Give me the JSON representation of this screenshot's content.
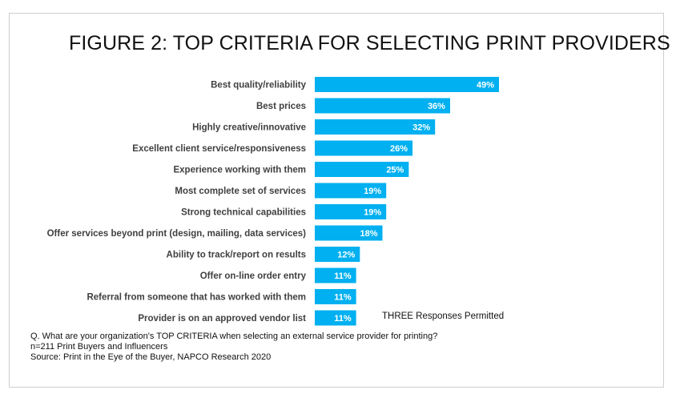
{
  "title": "FIGURE 2: TOP CRITERIA FOR SELECTING PRINT PROVIDERS",
  "note": "THREE Responses Permitted",
  "footnotes": {
    "question": "Q. What are your organization's TOP CRITERIA when selecting an external service provider for printing?",
    "sample": "n=211 Print Buyers and Influencers",
    "source": "Source: Print in the Eye of the Buyer, NAPCO Research 2020"
  },
  "colors": {
    "bar": "#00B0F0",
    "label": "#404040"
  },
  "chart_data": {
    "type": "bar",
    "orientation": "horizontal",
    "title": "FIGURE 2: TOP CRITERIA FOR SELECTING PRINT PROVIDERS",
    "categories": [
      "Best quality/reliability",
      "Best prices",
      "Highly creative/innovative",
      "Excellent client service/responsiveness",
      "Experience working with them",
      "Most complete set of services",
      "Strong technical capabilities",
      "Offer services beyond print (design, mailing, data services)",
      "Ability to track/report on results",
      "Offer on-line order entry",
      "Referral from someone that has worked with them",
      "Provider is on an approved vendor list"
    ],
    "values": [
      49,
      36,
      32,
      26,
      25,
      19,
      19,
      18,
      12,
      11,
      11,
      11
    ],
    "value_labels": [
      "49%",
      "36%",
      "32%",
      "26%",
      "25%",
      "19%",
      "19%",
      "18%",
      "12%",
      "11%",
      "11%",
      "11%"
    ],
    "unit": "%",
    "xlim": [
      0,
      49
    ],
    "grid": false,
    "legend": "none"
  }
}
